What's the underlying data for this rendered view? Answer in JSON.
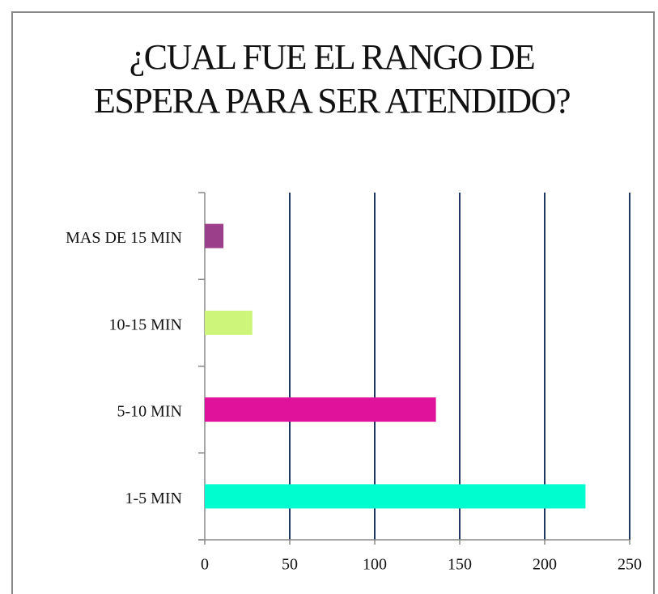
{
  "chart_data": {
    "type": "barh",
    "title": "¿CUAL FUE EL RANGO DE ESPERA PARA SER ATENDIDO?",
    "categories": [
      "1-5 MIN",
      "5-10 MIN",
      "10-15 MIN",
      "MAS DE 15 MIN"
    ],
    "values": [
      224,
      136,
      28,
      11
    ],
    "colors": [
      "#00fdcf",
      "#e0119a",
      "#ccf57a",
      "#9b3f8a"
    ],
    "xlim": [
      0,
      250
    ],
    "xticks": [
      0,
      50,
      100,
      150,
      200,
      250
    ],
    "grid": true
  }
}
